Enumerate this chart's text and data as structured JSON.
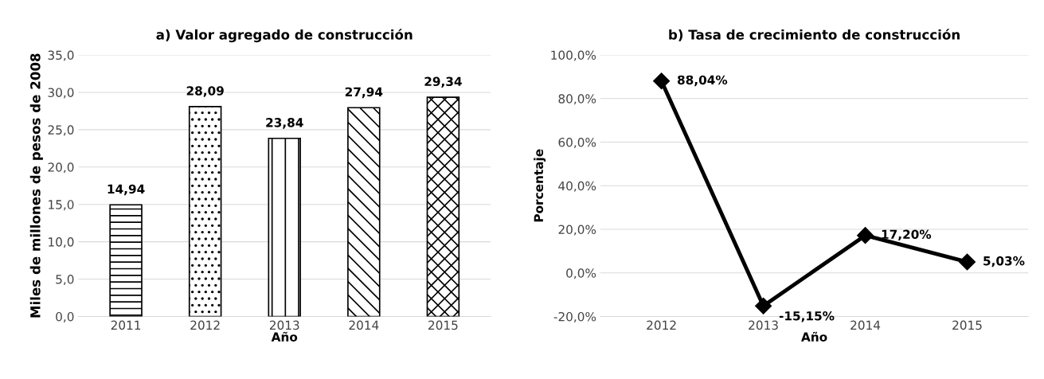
{
  "chart_data": [
    {
      "type": "bar",
      "title": "a) Valor agregado de construcción",
      "xlabel": "Año",
      "ylabel": "Miles de millones de pesos de 2008",
      "categories": [
        "2011",
        "2012",
        "2013",
        "2014",
        "2015"
      ],
      "values": [
        14.94,
        28.09,
        23.84,
        27.94,
        29.34
      ],
      "value_labels": [
        "14,94",
        "28,09",
        "23,84",
        "27,94",
        "29,34"
      ],
      "color": "#000000",
      "ylim": [
        0,
        35
      ],
      "yticks": [
        {
          "value": 0,
          "label": "0,0"
        },
        {
          "value": 5,
          "label": "5,0"
        },
        {
          "value": 10,
          "label": "10,0"
        },
        {
          "value": 15,
          "label": "15,0"
        },
        {
          "value": 20,
          "label": "20,0"
        },
        {
          "value": 25,
          "label": "25,0"
        },
        {
          "value": 30,
          "label": "30,0"
        },
        {
          "value": 35,
          "label": "35,0"
        }
      ],
      "grid": "y"
    },
    {
      "type": "line",
      "title": "b) Tasa de crecimiento de construcción",
      "xlabel": "Año",
      "ylabel": "Porcentaje",
      "categories": [
        "2012",
        "2013",
        "2014",
        "2015"
      ],
      "values": [
        88.04,
        -15.15,
        17.2,
        5.03
      ],
      "value_labels": [
        "88,04%",
        "-15,15%",
        "17,20%",
        "5,03%"
      ],
      "color": "#000000",
      "marker": "diamond",
      "line_style": "solid",
      "ylim": [
        -20,
        100
      ],
      "yticks": [
        {
          "value": -20,
          "label": "-20,0%"
        },
        {
          "value": 0,
          "label": "0,0%"
        },
        {
          "value": 20,
          "label": "20,0%"
        },
        {
          "value": 40,
          "label": "40,0%"
        },
        {
          "value": 60,
          "label": "60,0%"
        },
        {
          "value": 80,
          "label": "80,0%"
        },
        {
          "value": 100,
          "label": "100,0%"
        }
      ],
      "grid": "y"
    }
  ]
}
